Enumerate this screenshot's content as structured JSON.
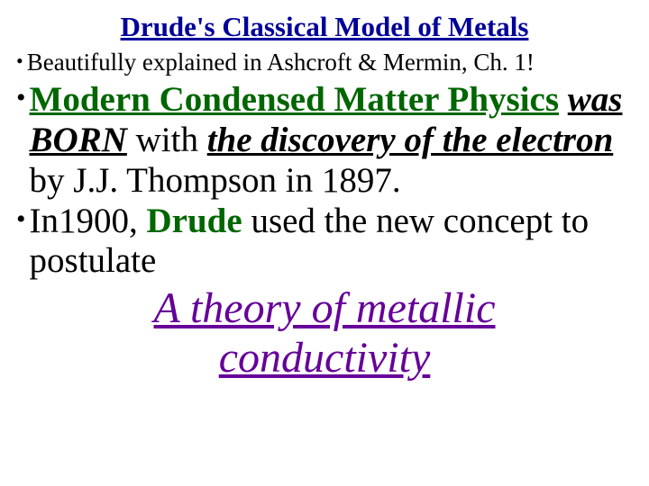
{
  "title": {
    "text": "Drude's Classical Model of Metals",
    "color": "#000099",
    "fontsize": 31
  },
  "subtitle": {
    "bullet": "•",
    "text": "Beautifully explained in Ashcroft & Mermin, Ch. 1!",
    "color": "#000000",
    "fontsize": 27,
    "bullet_fontsize": 22
  },
  "bullets": {
    "bullet_glyph": "•",
    "fontsize": 39,
    "bullet_fontsize": 30,
    "items": [
      {
        "span1": {
          "text": "Modern Condensed Matter Physics",
          "underline": true,
          "bold": true,
          "color": "#006600"
        },
        "span2": {
          "text": " ",
          "color": "#000000"
        },
        "wrap1": {
          "text": "was BORN",
          "italic": true,
          "bold": true,
          "underline": true,
          "color": "#000000"
        },
        "wrap2": {
          "text": " with ",
          "color": "#000000"
        },
        "wrap3": {
          "text": "the discovery of the electron",
          "italic": true,
          "bold": true,
          "underline": true,
          "color": "#000000"
        },
        "wrap4": {
          "text": " by J.J. Thompson in 1897.",
          "color": "#000000"
        }
      },
      {
        "span1": {
          "text": "In1900, ",
          "color": "#000000"
        },
        "span2": {
          "text": "Drude",
          "bold": true,
          "color": "#006600"
        },
        "wrap1": {
          "text": " used the new concept to postulate",
          "color": "#000000"
        }
      }
    ]
  },
  "conclusion": {
    "line1": "A theory of metallic",
    "line2": "conductivity",
    "color": "#660099",
    "fontsize": 48
  }
}
